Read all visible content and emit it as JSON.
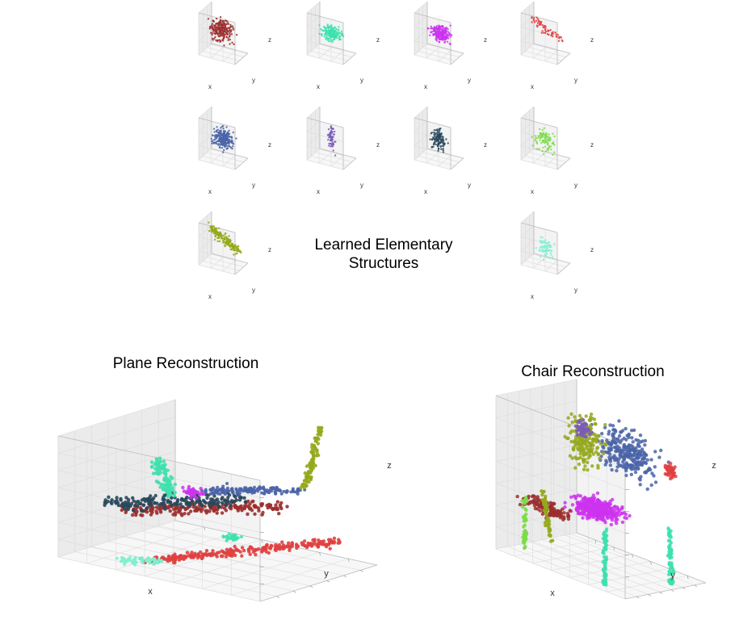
{
  "center_title": [
    "Learned Elementary",
    "Structures"
  ],
  "small_plots": [
    {
      "color": "#9b2e2e",
      "x_label": "x",
      "y_label": "y",
      "z_label": "z"
    },
    {
      "color": "#3ee0ae",
      "x_label": "x",
      "y_label": "y",
      "z_label": "z"
    },
    {
      "color": "#cc33ee",
      "x_label": "x",
      "y_label": "y",
      "z_label": "z"
    },
    {
      "color": "#e04040",
      "x_label": "x",
      "y_label": "y",
      "z_label": "z"
    },
    {
      "color": "#4a64a8",
      "x_label": "x",
      "y_label": "y",
      "z_label": "z"
    },
    {
      "color": "#7a5cb8",
      "x_label": "x",
      "y_label": "y",
      "z_label": "z"
    },
    {
      "color": "#28475a",
      "x_label": "x",
      "y_label": "y",
      "z_label": "z"
    },
    {
      "color": "#7ddb4a",
      "x_label": "x",
      "y_label": "y",
      "z_label": "z"
    },
    {
      "color": "#95a81c",
      "x_label": "x",
      "y_label": "y",
      "z_label": "z"
    },
    {
      "color": "#7ff0d0",
      "x_label": "x",
      "y_label": "y",
      "z_label": "z"
    }
  ],
  "chart_data": [
    {
      "type": "scatter",
      "title": "Plane Reconstruction",
      "xlabel": "x",
      "ylabel": "y",
      "zlabel": "z",
      "grid": true,
      "series_colors": [
        "#9b2e2e",
        "#3ee0ae",
        "#cc33ee",
        "#e04040",
        "#4a64a8",
        "#28475a",
        "#95a81c",
        "#7ff0d0"
      ]
    },
    {
      "type": "scatter",
      "title": "Chair Reconstruction",
      "xlabel": "x",
      "ylabel": "y",
      "zlabel": "z",
      "grid": true,
      "series_colors": [
        "#9b2e2e",
        "#3ee0ae",
        "#cc33ee",
        "#e04040",
        "#4a64a8",
        "#7a5cb8",
        "#95a81c",
        "#7ddb4a"
      ]
    }
  ]
}
